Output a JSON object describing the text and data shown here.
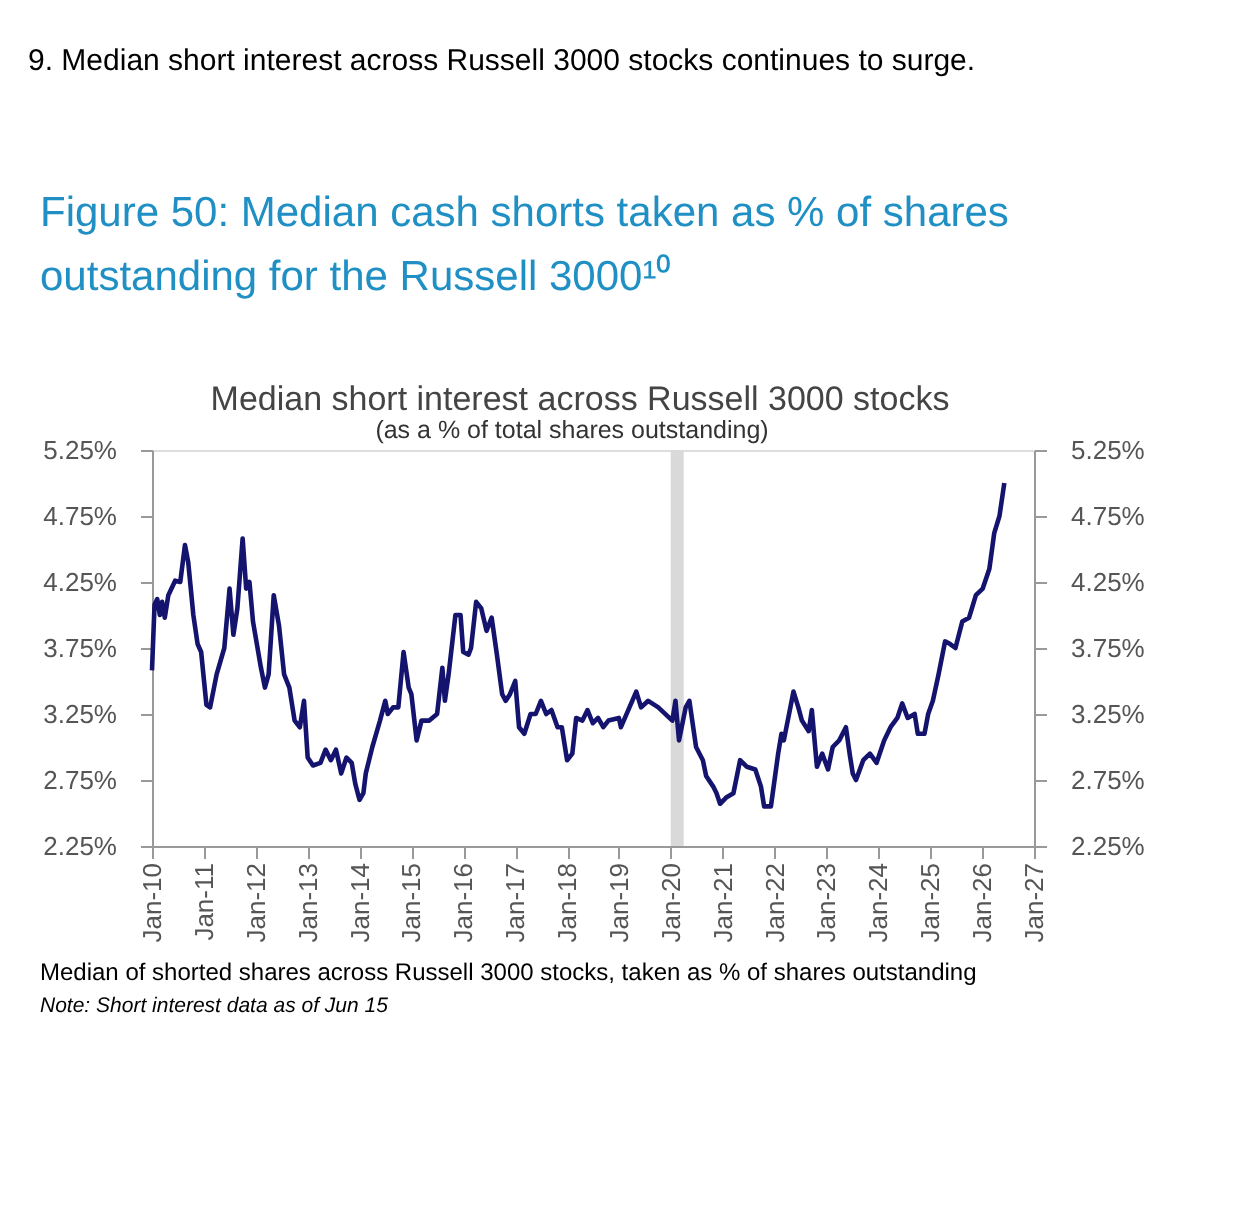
{
  "chart_data": {
    "type": "line",
    "title": "Figure 50: Median cash shorts taken as % of shares outstanding for the Russell 3000¹⁰",
    "subtitle": "Median short interest across Russell 3000 stocks",
    "annotations": [
      "9. Median short interest across Russell 3000 stocks continues to surge.",
      "(as a % of total shares outstanding)",
      "Median of shorted shares across Russell 3000 stocks, taken as % of shares outstanding",
      "Note: Short interest data as of Jun 15"
    ],
    "xlim": [
      "2010-01",
      "2027-01"
    ],
    "xticks": [
      {
        "value": "2010-01",
        "label": "Jan-10"
      },
      {
        "value": "2011-01",
        "label": "Jan-11"
      },
      {
        "value": "2012-01",
        "label": "Jan-12"
      },
      {
        "value": "2013-01",
        "label": "Jan-13"
      },
      {
        "value": "2014-01",
        "label": "Jan-14"
      },
      {
        "value": "2015-01",
        "label": "Jan-15"
      },
      {
        "value": "2016-01",
        "label": "Jan-16"
      },
      {
        "value": "2017-01",
        "label": "Jan-17"
      },
      {
        "value": "2018-01",
        "label": "Jan-18"
      },
      {
        "value": "2019-01",
        "label": "Jan-19"
      },
      {
        "value": "2020-01",
        "label": "Jan-20"
      },
      {
        "value": "2021-01",
        "label": "Jan-21"
      },
      {
        "value": "2022-01",
        "label": "Jan-22"
      },
      {
        "value": "2023-01",
        "label": "Jan-23"
      },
      {
        "value": "2024-01",
        "label": "Jan-24"
      },
      {
        "value": "2025-01",
        "label": "Jan-25"
      },
      {
        "value": "2026-01",
        "label": "Jan-26"
      },
      {
        "value": "2027-01",
        "label": "Jan-27"
      }
    ],
    "ylim": [
      2.25,
      5.25
    ],
    "yticks": [
      {
        "value": 2.25,
        "label": "2.25%"
      },
      {
        "value": 2.75,
        "label": "2.75%"
      },
      {
        "value": 3.25,
        "label": "3.25%"
      },
      {
        "value": 3.75,
        "label": "3.75%"
      },
      {
        "value": 4.25,
        "label": "4.25%"
      },
      {
        "value": 4.75,
        "label": "4.75%"
      },
      {
        "value": 5.25,
        "label": "5.25%"
      }
    ],
    "y2lim": [
      2.25,
      5.25
    ],
    "y2ticks": [
      {
        "value": 2.25,
        "label": "2.25%"
      },
      {
        "value": 2.75,
        "label": "2.75%"
      },
      {
        "value": 3.25,
        "label": "3.25%"
      },
      {
        "value": 3.75,
        "label": "3.75%"
      },
      {
        "value": 4.25,
        "label": "4.25%"
      },
      {
        "value": 4.75,
        "label": "4.75%"
      },
      {
        "value": 5.25,
        "label": "5.25%"
      }
    ],
    "bands": [
      {
        "axis": "x",
        "from": "2020-01-01",
        "to": "2020-04-01",
        "color": "#d9d9d9"
      }
    ],
    "series": [
      {
        "color": "#14146e",
        "x": [
          "2010-01-01",
          "2010-01-19",
          "2010-02-07",
          "2010-02-25",
          "2010-03-13",
          "2010-04-01",
          "2010-04-26",
          "2010-06-13",
          "2010-07-19",
          "2010-08-21",
          "2010-09-13",
          "2010-10-19",
          "2010-11-18",
          "2010-12-13",
          "2011-01-19",
          "2011-02-14",
          "2011-04-01",
          "2011-05-25",
          "2011-07-01",
          "2011-07-28",
          "2011-08-25",
          "2011-10-01",
          "2011-10-26",
          "2011-11-18",
          "2011-12-13",
          "2012-02-07",
          "2012-03-06",
          "2012-04-01",
          "2012-05-07",
          "2012-06-13",
          "2012-07-19",
          "2012-08-25",
          "2012-10-01",
          "2012-11-07",
          "2012-12-06",
          "2013-01-01",
          "2013-02-07",
          "2013-04-01",
          "2013-05-07",
          "2013-06-13",
          "2013-07-19",
          "2013-08-25",
          "2013-10-01",
          "2013-11-07",
          "2013-12-02",
          "2014-01-01",
          "2014-01-28",
          "2014-02-14",
          "2014-04-01",
          "2014-05-25",
          "2014-07-01",
          "2014-07-19",
          "2014-08-25",
          "2014-10-01",
          "2014-11-07",
          "2014-12-13",
          "2015-01-01",
          "2015-02-07",
          "2015-03-13",
          "2015-05-07",
          "2015-07-01",
          "2015-08-07",
          "2015-08-25",
          "2015-09-20",
          "2015-11-07",
          "2015-12-13",
          "2016-01-01",
          "2016-02-07",
          "2016-02-25",
          "2016-04-01",
          "2016-05-07",
          "2016-06-13",
          "2016-07-19",
          "2016-08-25",
          "2016-10-01",
          "2016-10-26",
          "2016-11-25",
          "2017-01-01",
          "2017-01-28",
          "2017-03-06",
          "2017-04-19",
          "2017-05-25",
          "2017-07-01",
          "2017-08-07",
          "2017-09-13",
          "2017-10-26",
          "2017-11-25",
          "2018-01-01",
          "2018-02-07",
          "2018-03-06",
          "2018-04-19",
          "2018-05-25",
          "2018-07-01",
          "2018-08-07",
          "2018-09-13",
          "2018-10-19",
          "2019-01-01",
          "2019-01-15",
          "2019-05-03",
          "2019-06-06",
          "2019-07-26",
          "2019-10-05",
          "2020-01-12",
          "2020-02-03",
          "2020-02-28",
          "2020-04-15",
          "2020-05-11",
          "2020-06-27",
          "2020-08-14",
          "2020-09-06",
          "2020-10-26",
          "2020-11-18",
          "2020-12-13",
          "2021-01-28",
          "2021-03-17",
          "2021-05-03",
          "2021-06-20",
          "2021-08-18",
          "2021-09-27",
          "2021-10-19",
          "2021-12-06",
          "2022-01-26",
          "2022-02-18",
          "2022-03-07",
          "2022-05-14",
          "2022-06-17",
          "2022-07-12",
          "2022-08-29",
          "2022-09-20",
          "2022-10-26",
          "2022-12-02",
          "2023-01-12",
          "2023-02-14",
          "2023-04-01",
          "2023-05-18",
          "2023-06-13",
          "2023-07-05",
          "2023-07-28",
          "2023-09-17",
          "2023-11-03",
          "2023-12-20",
          "2024-02-11",
          "2024-03-27",
          "2024-05-14",
          "2024-06-17",
          "2024-07-26",
          "2024-09-13",
          "2024-10-05",
          "2024-11-21",
          "2024-12-17",
          "2025-01-19",
          "2025-02-28",
          "2025-04-15",
          "2025-05-21",
          "2025-06-27",
          "2025-08-14",
          "2025-10-01",
          "2025-11-18",
          "2026-01-05",
          "2026-02-21",
          "2026-03-27",
          "2026-05-03",
          "2026-06-06"
        ],
        "values": [
          3.58,
          4.08,
          4.12,
          4.0,
          4.1,
          3.98,
          4.15,
          4.26,
          4.25,
          4.53,
          4.4,
          4.0,
          3.78,
          3.72,
          3.32,
          3.3,
          3.55,
          3.75,
          4.2,
          3.85,
          4.05,
          4.58,
          4.2,
          4.25,
          3.95,
          3.6,
          3.45,
          3.55,
          4.15,
          3.92,
          3.55,
          3.45,
          3.2,
          3.15,
          3.35,
          2.92,
          2.86,
          2.88,
          2.98,
          2.9,
          2.98,
          2.8,
          2.92,
          2.88,
          2.72,
          2.6,
          2.65,
          2.8,
          3.0,
          3.2,
          3.35,
          3.25,
          3.3,
          3.3,
          3.72,
          3.45,
          3.4,
          3.05,
          3.2,
          3.2,
          3.25,
          3.6,
          3.35,
          3.55,
          4.0,
          4.0,
          3.72,
          3.7,
          3.75,
          4.1,
          4.05,
          3.88,
          3.98,
          3.7,
          3.4,
          3.35,
          3.4,
          3.5,
          3.15,
          3.1,
          3.25,
          3.25,
          3.35,
          3.25,
          3.28,
          3.15,
          3.15,
          2.9,
          2.95,
          3.22,
          3.2,
          3.28,
          3.18,
          3.22,
          3.15,
          3.2,
          3.22,
          3.15,
          3.42,
          3.3,
          3.35,
          3.3,
          3.2,
          3.35,
          3.05,
          3.3,
          3.35,
          3.0,
          2.9,
          2.78,
          2.7,
          2.65,
          2.57,
          2.62,
          2.65,
          2.9,
          2.85,
          2.83,
          2.7,
          2.55,
          2.55,
          2.95,
          3.1,
          3.05,
          3.42,
          3.3,
          3.2,
          3.12,
          3.28,
          2.85,
          2.95,
          2.83,
          3.0,
          3.05,
          3.15,
          2.95,
          2.8,
          2.75,
          2.9,
          2.95,
          2.88,
          3.05,
          3.15,
          3.22,
          3.33,
          3.22,
          3.25,
          3.1,
          3.1,
          3.25,
          3.35,
          3.55,
          3.8,
          3.78,
          3.75,
          3.95,
          3.98,
          4.15,
          4.2,
          4.35,
          4.62,
          4.75,
          5.0
        ]
      }
    ]
  }
}
